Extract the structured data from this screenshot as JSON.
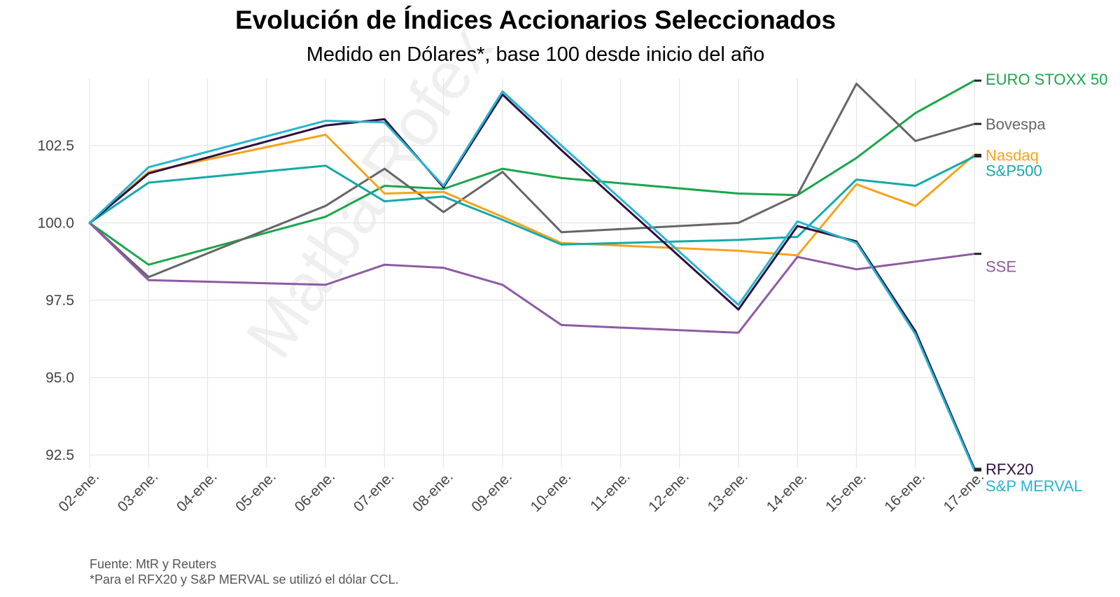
{
  "chart_data": {
    "type": "line",
    "title": "Evolución de Índices Accionarios Seleccionados",
    "subtitle": "Medido en Dólares*, base 100 desde inicio del año",
    "categories": [
      "02-ene.",
      "03-ene.",
      "04-ene.",
      "05-ene.",
      "06-ene.",
      "07-ene.",
      "08-ene.",
      "09-ene.",
      "10-ene.",
      "11-ene.",
      "12-ene.",
      "13-ene.",
      "14-ene.",
      "15-ene.",
      "16-ene.",
      "17-ene."
    ],
    "yticks": [
      92.5,
      95.0,
      97.5,
      100.0,
      102.5
    ],
    "ylim": [
      91.5,
      104.6
    ],
    "grid": true,
    "legend": "direct labels at right end of lines",
    "series": [
      {
        "name": "EURO STOXX 50",
        "color": "#1aa64a",
        "values": [
          100.0,
          98.65,
          null,
          null,
          100.2,
          101.2,
          101.1,
          101.75,
          101.45,
          null,
          null,
          100.95,
          100.9,
          102.1,
          103.55,
          104.6
        ]
      },
      {
        "name": "Bovespa",
        "color": "#666666",
        "values": [
          100.0,
          98.25,
          null,
          null,
          100.55,
          101.75,
          100.35,
          101.65,
          99.7,
          null,
          null,
          100.0,
          100.9,
          104.5,
          102.65,
          103.2
        ]
      },
      {
        "name": "Nasdaq",
        "color": "#f7a21b",
        "values": [
          100.0,
          101.65,
          null,
          null,
          102.85,
          100.95,
          101.0,
          100.2,
          99.35,
          null,
          null,
          99.1,
          98.95,
          101.25,
          100.55,
          102.2
        ]
      },
      {
        "name": "S&P500",
        "color": "#14a9a8",
        "values": [
          100.0,
          101.3,
          null,
          null,
          101.85,
          100.7,
          100.85,
          100.1,
          99.3,
          null,
          null,
          99.45,
          99.55,
          101.4,
          101.2,
          102.15
        ]
      },
      {
        "name": "SSE",
        "color": "#8e5aa3",
        "values": [
          100.0,
          98.15,
          null,
          null,
          98.0,
          98.65,
          98.55,
          98.0,
          96.7,
          null,
          null,
          96.45,
          98.9,
          98.5,
          null,
          99.0
        ]
      },
      {
        "name": "RFX20",
        "color": "#2c0f3f",
        "values": [
          100.0,
          101.6,
          null,
          null,
          103.15,
          103.35,
          101.15,
          104.15,
          102.35,
          null,
          null,
          97.2,
          99.9,
          99.4,
          96.5,
          92.05
        ]
      },
      {
        "name": "S&P MERVAL",
        "color": "#29b4cf",
        "values": [
          100.0,
          101.8,
          null,
          null,
          103.3,
          103.25,
          101.2,
          104.25,
          102.5,
          null,
          null,
          97.35,
          100.05,
          99.35,
          96.4,
          92.0
        ]
      }
    ],
    "end_labels": [
      {
        "series": "EURO STOXX 50",
        "label": "EURO STOXX 50",
        "label_value": 104.65
      },
      {
        "series": "Bovespa",
        "label": "Bovespa",
        "label_value": 103.2
      },
      {
        "series": "Nasdaq",
        "label": "Nasdaq",
        "label_value": 102.2
      },
      {
        "series": "S&P500",
        "label": "S&P500",
        "label_value": 101.7
      },
      {
        "series": "SSE",
        "label": "SSE",
        "label_value": 98.6
      },
      {
        "series": "RFX20",
        "label": "RFX20",
        "label_value": 92.05
      },
      {
        "series": "S&P MERVAL",
        "label": "S&P MERVAL",
        "label_value": 91.5
      }
    ]
  },
  "source": {
    "line1": "Fuente: MtR y Reuters",
    "line2": "*Para el RFX20 y S&P MERVAL se utilizó el dólar CCL."
  },
  "watermark": "Matba Rofex"
}
